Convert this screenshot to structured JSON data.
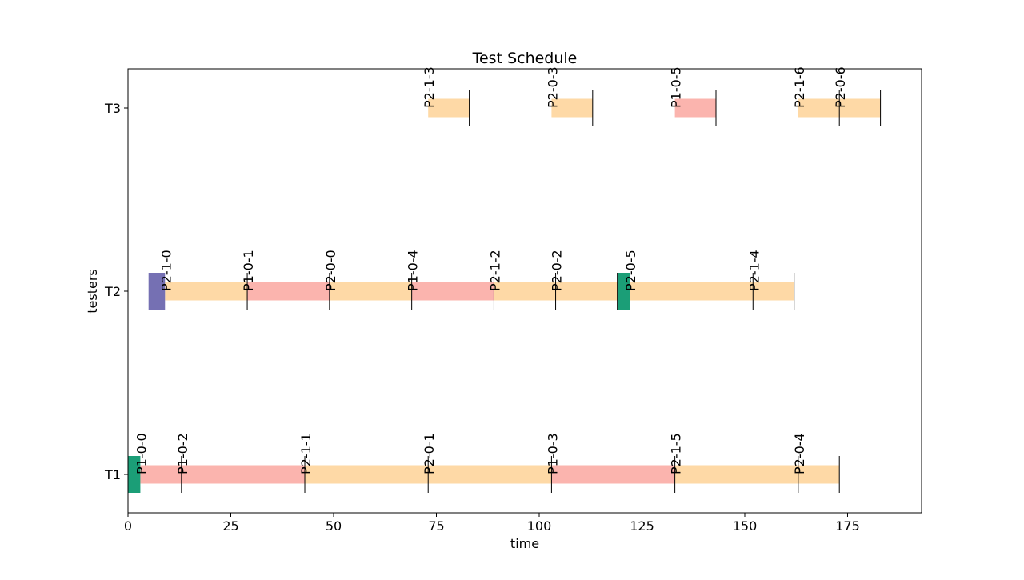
{
  "chart_data": {
    "type": "gantt",
    "title": "Test Schedule",
    "xlabel": "time",
    "ylabel": "testers",
    "xlim": [
      0,
      193
    ],
    "xticks": [
      0,
      25,
      50,
      75,
      100,
      125,
      150,
      175
    ],
    "categories": [
      "T1",
      "T2",
      "T3"
    ],
    "grid": false,
    "legend": "none",
    "colors": {
      "P1": "#fbb4ae",
      "P2": "#fed9a6",
      "setup_a": "#1b9e77",
      "setup_b": "#7570b3"
    },
    "setups": [
      {
        "tester": "T1",
        "start": 0,
        "end": 3,
        "color": "setup_a"
      },
      {
        "tester": "T2",
        "start": 5,
        "end": 9,
        "color": "setup_b"
      },
      {
        "tester": "T2",
        "start": 119,
        "end": 122,
        "color": "setup_a"
      }
    ],
    "tasks": [
      {
        "tester": "T1",
        "label": "P1-0-0",
        "start": 3,
        "end": 13,
        "product": "P1"
      },
      {
        "tester": "T1",
        "label": "P1-0-2",
        "start": 13,
        "end": 43,
        "product": "P1"
      },
      {
        "tester": "T1",
        "label": "P2-1-1",
        "start": 43,
        "end": 73,
        "product": "P2"
      },
      {
        "tester": "T1",
        "label": "P2-0-1",
        "start": 73,
        "end": 103,
        "product": "P2"
      },
      {
        "tester": "T1",
        "label": "P1-0-3",
        "start": 103,
        "end": 133,
        "product": "P1"
      },
      {
        "tester": "T1",
        "label": "P2-1-5",
        "start": 133,
        "end": 163,
        "product": "P2"
      },
      {
        "tester": "T1",
        "label": "P2-0-4",
        "start": 163,
        "end": 173,
        "product": "P2"
      },
      {
        "tester": "T2",
        "label": "P2-1-0",
        "start": 9,
        "end": 29,
        "product": "P2"
      },
      {
        "tester": "T2",
        "label": "P1-0-1",
        "start": 29,
        "end": 49,
        "product": "P1"
      },
      {
        "tester": "T2",
        "label": "P2-0-0",
        "start": 49,
        "end": 69,
        "product": "P2"
      },
      {
        "tester": "T2",
        "label": "P1-0-4",
        "start": 69,
        "end": 89,
        "product": "P1"
      },
      {
        "tester": "T2",
        "label": "P2-1-2",
        "start": 89,
        "end": 104,
        "product": "P2"
      },
      {
        "tester": "T2",
        "label": "P2-0-2",
        "start": 104,
        "end": 119,
        "product": "P2"
      },
      {
        "tester": "T2",
        "label": "P2-0-5",
        "start": 122,
        "end": 152,
        "product": "P2"
      },
      {
        "tester": "T2",
        "label": "P2-1-4",
        "start": 152,
        "end": 162,
        "product": "P2"
      },
      {
        "tester": "T3",
        "label": "P2-1-3",
        "start": 73,
        "end": 83,
        "product": "P2"
      },
      {
        "tester": "T3",
        "label": "P2-0-3",
        "start": 103,
        "end": 113,
        "product": "P2"
      },
      {
        "tester": "T3",
        "label": "P1-0-5",
        "start": 133,
        "end": 143,
        "product": "P1"
      },
      {
        "tester": "T3",
        "label": "P2-1-6",
        "start": 163,
        "end": 173,
        "product": "P2"
      },
      {
        "tester": "T3",
        "label": "P2-0-6",
        "start": 173,
        "end": 183,
        "product": "P2"
      }
    ]
  }
}
